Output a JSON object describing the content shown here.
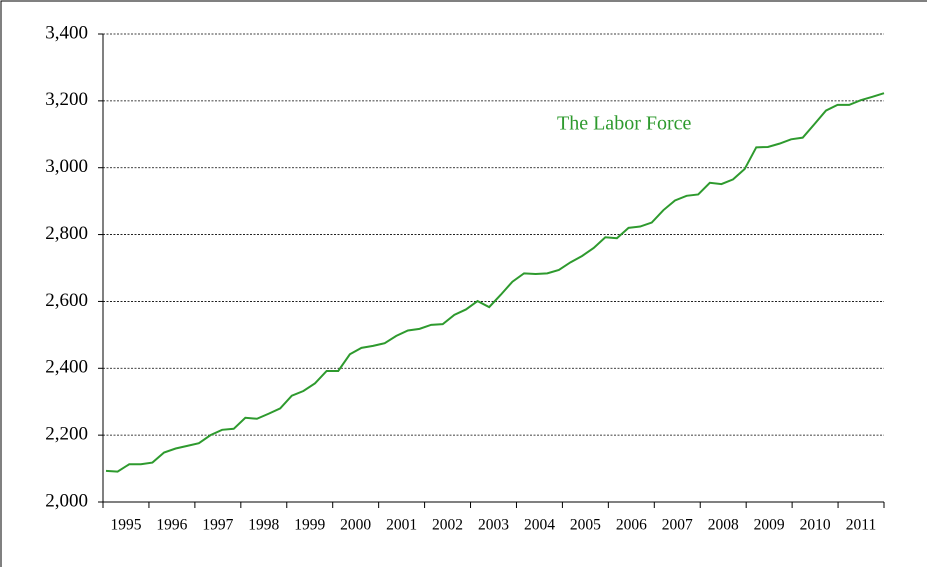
{
  "chart_data": {
    "type": "line",
    "annotation": "The Labor Force",
    "categories": [
      "1995",
      null,
      null,
      null,
      "1996",
      null,
      null,
      null,
      "1997",
      null,
      null,
      null,
      "1998",
      null,
      null,
      null,
      "1999",
      null,
      null,
      null,
      "2000",
      null,
      null,
      null,
      "2001",
      null,
      null,
      null,
      "2002",
      null,
      null,
      null,
      "2003",
      null,
      null,
      null,
      "2004",
      null,
      null,
      null,
      "2005",
      null,
      null,
      null,
      "2006",
      null,
      null,
      null,
      "2007",
      null,
      null,
      null,
      "2008",
      null,
      null,
      null,
      "2009",
      null,
      null,
      null,
      "2010",
      null,
      null,
      null,
      "2011",
      null,
      null,
      null
    ],
    "values": [
      2093,
      2091,
      2113,
      2113,
      2118,
      2148,
      2160,
      2168,
      2176,
      2200,
      2216,
      2219,
      2252,
      2249,
      2264,
      2280,
      2318,
      2332,
      2355,
      2392,
      2392,
      2442,
      2461,
      2467,
      2475,
      2497,
      2513,
      2518,
      2530,
      2532,
      2560,
      2576,
      2601,
      2583,
      2620,
      2659,
      2684,
      2682,
      2684,
      2694,
      2717,
      2736,
      2760,
      2792,
      2789,
      2820,
      2824,
      2836,
      2873,
      2902,
      2916,
      2920,
      2955,
      2951,
      2965,
      2996,
      3061,
      3062,
      3072,
      3085,
      3090,
      3130,
      3171,
      3188,
      3188,
      3202,
      3212,
      3223
    ],
    "color": "#2e9a2e",
    "ylim": [
      2000,
      3400
    ],
    "yticks": [
      {
        "value": 2000,
        "label": "2,000"
      },
      {
        "value": 2200,
        "label": "2,200"
      },
      {
        "value": 2400,
        "label": "2,400"
      },
      {
        "value": 2600,
        "label": "2,600"
      },
      {
        "value": 2800,
        "label": "2,800"
      },
      {
        "value": 3000,
        "label": "3,000"
      },
      {
        "value": 3200,
        "label": "3,200"
      },
      {
        "value": 3400,
        "label": "3,400"
      }
    ],
    "grid": true
  }
}
